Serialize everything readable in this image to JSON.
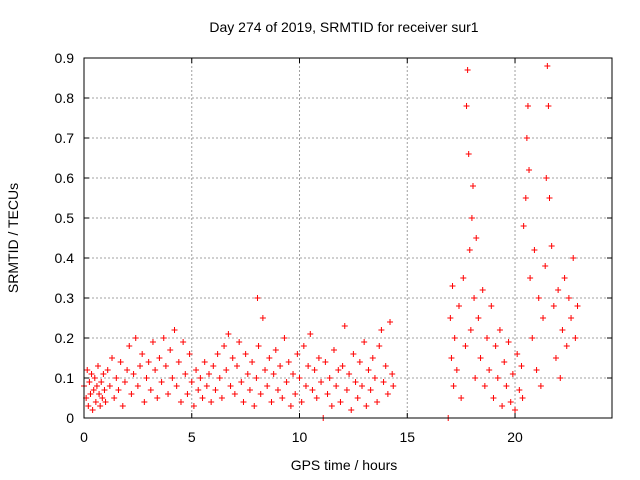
{
  "chart_data": {
    "type": "scatter",
    "title": "Day 274 of 2019, SRMTID for receiver sur1",
    "xlabel": "GPS time / hours",
    "ylabel": "SRMTID / TECUs",
    "xlim": [
      0,
      24.5
    ],
    "ylim": [
      0,
      0.9
    ],
    "xticks": [
      0,
      5,
      10,
      15,
      20
    ],
    "xtick_labels": [
      "0",
      "5",
      "10",
      "15",
      "20"
    ],
    "yticks": [
      0,
      0.1,
      0.2,
      0.3,
      0.4,
      0.5,
      0.6,
      0.7,
      0.8,
      0.9
    ],
    "ytick_labels": [
      "0",
      "0.1",
      "0.2",
      "0.3",
      "0.4",
      "0.5",
      "0.6",
      "0.7",
      "0.8",
      "0.9"
    ],
    "grid": true,
    "marker": "+",
    "color": "#ff0000",
    "series": [
      {
        "name": "SRMTID",
        "points": [
          [
            0.0,
            0.08
          ],
          [
            0.1,
            0.05
          ],
          [
            0.15,
            0.12
          ],
          [
            0.2,
            0.03
          ],
          [
            0.25,
            0.09
          ],
          [
            0.3,
            0.06
          ],
          [
            0.35,
            0.11
          ],
          [
            0.4,
            0.02
          ],
          [
            0.45,
            0.07
          ],
          [
            0.5,
            0.1
          ],
          [
            0.55,
            0.04
          ],
          [
            0.6,
            0.08
          ],
          [
            0.65,
            0.13
          ],
          [
            0.7,
            0.06
          ],
          [
            0.75,
            0.03
          ],
          [
            0.8,
            0.09
          ],
          [
            0.85,
            0.05
          ],
          [
            0.9,
            0.11
          ],
          [
            0.95,
            0.07
          ],
          [
            1.0,
            0.04
          ],
          [
            1.1,
            0.12
          ],
          [
            1.2,
            0.08
          ],
          [
            1.3,
            0.15
          ],
          [
            1.4,
            0.05
          ],
          [
            1.5,
            0.1
          ],
          [
            1.6,
            0.07
          ],
          [
            1.7,
            0.14
          ],
          [
            1.8,
            0.03
          ],
          [
            1.9,
            0.09
          ],
          [
            2.0,
            0.12
          ],
          [
            2.1,
            0.18
          ],
          [
            2.2,
            0.06
          ],
          [
            2.3,
            0.11
          ],
          [
            2.4,
            0.2
          ],
          [
            2.5,
            0.08
          ],
          [
            2.6,
            0.13
          ],
          [
            2.7,
            0.16
          ],
          [
            2.8,
            0.04
          ],
          [
            2.9,
            0.1
          ],
          [
            3.0,
            0.14
          ],
          [
            3.1,
            0.07
          ],
          [
            3.2,
            0.19
          ],
          [
            3.3,
            0.12
          ],
          [
            3.4,
            0.05
          ],
          [
            3.5,
            0.15
          ],
          [
            3.6,
            0.09
          ],
          [
            3.7,
            0.2
          ],
          [
            3.8,
            0.13
          ],
          [
            3.9,
            0.06
          ],
          [
            4.0,
            0.17
          ],
          [
            4.1,
            0.1
          ],
          [
            4.2,
            0.22
          ],
          [
            4.3,
            0.08
          ],
          [
            4.4,
            0.14
          ],
          [
            4.5,
            0.04
          ],
          [
            4.6,
            0.19
          ],
          [
            4.7,
            0.11
          ],
          [
            4.8,
            0.06
          ],
          [
            4.9,
            0.16
          ],
          [
            5.0,
            0.09
          ],
          [
            5.1,
            0.03
          ],
          [
            5.2,
            0.12
          ],
          [
            5.3,
            0.07
          ],
          [
            5.4,
            0.1
          ],
          [
            5.5,
            0.05
          ],
          [
            5.6,
            0.14
          ],
          [
            5.7,
            0.08
          ],
          [
            5.8,
            0.11
          ],
          [
            5.9,
            0.04
          ],
          [
            6.0,
            0.13
          ],
          [
            6.1,
            0.07
          ],
          [
            6.2,
            0.16
          ],
          [
            6.3,
            0.1
          ],
          [
            6.4,
            0.05
          ],
          [
            6.5,
            0.18
          ],
          [
            6.6,
            0.12
          ],
          [
            6.7,
            0.21
          ],
          [
            6.8,
            0.08
          ],
          [
            6.9,
            0.15
          ],
          [
            7.0,
            0.06
          ],
          [
            7.1,
            0.13
          ],
          [
            7.2,
            0.19
          ],
          [
            7.3,
            0.09
          ],
          [
            7.4,
            0.04
          ],
          [
            7.5,
            0.16
          ],
          [
            7.6,
            0.11
          ],
          [
            7.7,
            0.07
          ],
          [
            7.8,
            0.14
          ],
          [
            7.9,
            0.03
          ],
          [
            8.0,
            0.1
          ],
          [
            8.05,
            0.3
          ],
          [
            8.1,
            0.18
          ],
          [
            8.2,
            0.06
          ],
          [
            8.3,
            0.25
          ],
          [
            8.4,
            0.12
          ],
          [
            8.5,
            0.08
          ],
          [
            8.6,
            0.15
          ],
          [
            8.7,
            0.04
          ],
          [
            8.8,
            0.11
          ],
          [
            8.9,
            0.17
          ],
          [
            9.0,
            0.07
          ],
          [
            9.1,
            0.13
          ],
          [
            9.2,
            0.05
          ],
          [
            9.3,
            0.2
          ],
          [
            9.4,
            0.09
          ],
          [
            9.5,
            0.14
          ],
          [
            9.6,
            0.03
          ],
          [
            9.7,
            0.11
          ],
          [
            9.8,
            0.06
          ],
          [
            9.9,
            0.16
          ],
          [
            10.0,
            0.1
          ],
          [
            10.1,
            0.04
          ],
          [
            10.2,
            0.18
          ],
          [
            10.3,
            0.08
          ],
          [
            10.4,
            0.13
          ],
          [
            10.5,
            0.21
          ],
          [
            10.6,
            0.07
          ],
          [
            10.7,
            0.12
          ],
          [
            10.8,
            0.05
          ],
          [
            10.9,
            0.15
          ],
          [
            11.0,
            0.09
          ],
          [
            11.1,
            0.0
          ],
          [
            11.2,
            0.14
          ],
          [
            11.3,
            0.06
          ],
          [
            11.4,
            0.1
          ],
          [
            11.5,
            0.03
          ],
          [
            11.6,
            0.17
          ],
          [
            11.7,
            0.08
          ],
          [
            11.8,
            0.12
          ],
          [
            11.9,
            0.04
          ],
          [
            12.0,
            0.13
          ],
          [
            12.1,
            0.23
          ],
          [
            12.2,
            0.07
          ],
          [
            12.3,
            0.11
          ],
          [
            12.4,
            0.02
          ],
          [
            12.5,
            0.16
          ],
          [
            12.6,
            0.09
          ],
          [
            12.7,
            0.05
          ],
          [
            12.8,
            0.14
          ],
          [
            12.9,
            0.08
          ],
          [
            13.0,
            0.19
          ],
          [
            13.1,
            0.03
          ],
          [
            13.2,
            0.12
          ],
          [
            13.3,
            0.07
          ],
          [
            13.4,
            0.15
          ],
          [
            13.5,
            0.1
          ],
          [
            13.6,
            0.04
          ],
          [
            13.7,
            0.18
          ],
          [
            13.8,
            0.22
          ],
          [
            13.9,
            0.09
          ],
          [
            14.0,
            0.13
          ],
          [
            14.1,
            0.06
          ],
          [
            14.2,
            0.24
          ],
          [
            14.3,
            0.11
          ],
          [
            14.35,
            0.08
          ],
          [
            16.9,
            0.0
          ],
          [
            17.0,
            0.25
          ],
          [
            17.05,
            0.15
          ],
          [
            17.1,
            0.33
          ],
          [
            17.15,
            0.08
          ],
          [
            17.2,
            0.2
          ],
          [
            17.3,
            0.12
          ],
          [
            17.4,
            0.28
          ],
          [
            17.5,
            0.05
          ],
          [
            17.6,
            0.35
          ],
          [
            17.7,
            0.18
          ],
          [
            17.75,
            0.78
          ],
          [
            17.8,
            0.87
          ],
          [
            17.85,
            0.66
          ],
          [
            17.9,
            0.42
          ],
          [
            17.95,
            0.22
          ],
          [
            18.0,
            0.5
          ],
          [
            18.05,
            0.58
          ],
          [
            18.1,
            0.3
          ],
          [
            18.15,
            0.1
          ],
          [
            18.2,
            0.45
          ],
          [
            18.3,
            0.25
          ],
          [
            18.4,
            0.15
          ],
          [
            18.5,
            0.32
          ],
          [
            18.6,
            0.08
          ],
          [
            18.7,
            0.2
          ],
          [
            18.8,
            0.12
          ],
          [
            18.9,
            0.28
          ],
          [
            19.0,
            0.05
          ],
          [
            19.1,
            0.18
          ],
          [
            19.2,
            0.1
          ],
          [
            19.3,
            0.22
          ],
          [
            19.4,
            0.03
          ],
          [
            19.5,
            0.14
          ],
          [
            19.6,
            0.08
          ],
          [
            19.7,
            0.19
          ],
          [
            19.8,
            0.04
          ],
          [
            19.9,
            0.11
          ],
          [
            20.0,
            0.02
          ],
          [
            20.1,
            0.16
          ],
          [
            20.2,
            0.07
          ],
          [
            20.3,
            0.13
          ],
          [
            20.35,
            0.05
          ],
          [
            20.4,
            0.48
          ],
          [
            20.5,
            0.55
          ],
          [
            20.55,
            0.7
          ],
          [
            20.6,
            0.78
          ],
          [
            20.65,
            0.62
          ],
          [
            20.7,
            0.35
          ],
          [
            20.8,
            0.2
          ],
          [
            20.9,
            0.42
          ],
          [
            21.0,
            0.12
          ],
          [
            21.1,
            0.3
          ],
          [
            21.2,
            0.08
          ],
          [
            21.3,
            0.25
          ],
          [
            21.4,
            0.38
          ],
          [
            21.45,
            0.6
          ],
          [
            21.5,
            0.88
          ],
          [
            21.55,
            0.78
          ],
          [
            21.6,
            0.55
          ],
          [
            21.7,
            0.43
          ],
          [
            21.8,
            0.28
          ],
          [
            21.9,
            0.15
          ],
          [
            22.0,
            0.32
          ],
          [
            22.1,
            0.1
          ],
          [
            22.2,
            0.22
          ],
          [
            22.3,
            0.35
          ],
          [
            22.4,
            0.18
          ],
          [
            22.5,
            0.3
          ],
          [
            22.6,
            0.25
          ],
          [
            22.7,
            0.4
          ],
          [
            22.8,
            0.2
          ],
          [
            22.9,
            0.28
          ]
        ]
      }
    ]
  }
}
